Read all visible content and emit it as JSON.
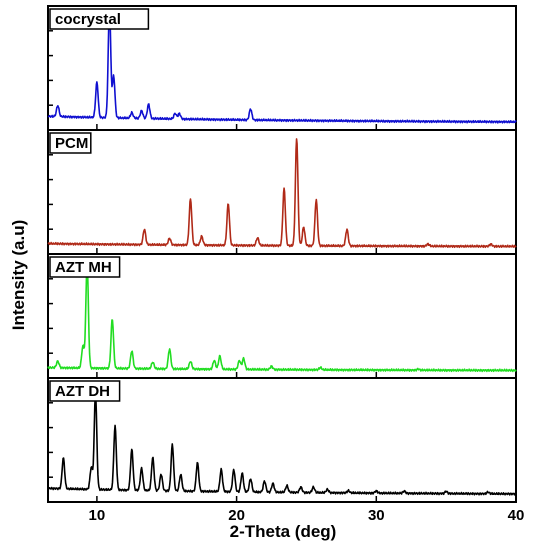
{
  "chart_data": {
    "type": "line",
    "xlabel": "2-Theta (deg)",
    "ylabel": "Intensity (a.u)",
    "xlim": [
      6.5,
      40
    ],
    "x_ticks": [
      10,
      20,
      30,
      40
    ],
    "x_tick_labels": [
      "10",
      "20",
      "30",
      "40"
    ],
    "grid": false,
    "legend": "none",
    "panels": [
      {
        "label": "cocrystal",
        "color": "#1010d0",
        "baseline": 0.06,
        "peaks": [
          [
            7.2,
            0.1
          ],
          [
            10.0,
            0.32
          ],
          [
            10.9,
            1.0
          ],
          [
            11.2,
            0.38
          ],
          [
            12.5,
            0.05
          ],
          [
            13.2,
            0.07
          ],
          [
            13.7,
            0.13
          ],
          [
            15.6,
            0.05
          ],
          [
            15.9,
            0.05
          ],
          [
            21.0,
            0.1
          ]
        ]
      },
      {
        "label": "PCM",
        "color": "#b02a18",
        "baseline": 0.03,
        "peaks": [
          [
            13.4,
            0.14
          ],
          [
            15.2,
            0.06
          ],
          [
            16.7,
            0.42
          ],
          [
            17.5,
            0.08
          ],
          [
            19.4,
            0.38
          ],
          [
            21.5,
            0.07
          ],
          [
            23.4,
            0.52
          ],
          [
            24.3,
            0.98
          ],
          [
            24.8,
            0.17
          ],
          [
            25.7,
            0.42
          ],
          [
            27.9,
            0.15
          ],
          [
            33.7,
            0.02
          ],
          [
            38.2,
            0.02
          ]
        ]
      },
      {
        "label": "AZT MH",
        "color": "#22dd22",
        "baseline": 0.03,
        "peaks": [
          [
            7.2,
            0.06
          ],
          [
            9.0,
            0.2
          ],
          [
            9.3,
            0.95
          ],
          [
            11.1,
            0.45
          ],
          [
            12.5,
            0.16
          ],
          [
            14.0,
            0.06
          ],
          [
            15.2,
            0.18
          ],
          [
            16.7,
            0.07
          ],
          [
            18.4,
            0.08
          ],
          [
            18.8,
            0.12
          ],
          [
            20.2,
            0.08
          ],
          [
            20.5,
            0.1
          ],
          [
            22.5,
            0.03
          ],
          [
            26.0,
            0.02
          ],
          [
            33.0,
            0.01
          ]
        ]
      },
      {
        "label": "AZT DH",
        "color": "#000000",
        "baseline": 0.06,
        "peaks": [
          [
            7.6,
            0.28
          ],
          [
            9.6,
            0.2
          ],
          [
            9.9,
            0.88
          ],
          [
            11.3,
            0.58
          ],
          [
            12.5,
            0.37
          ],
          [
            13.2,
            0.2
          ],
          [
            14.0,
            0.3
          ],
          [
            14.6,
            0.15
          ],
          [
            15.4,
            0.42
          ],
          [
            16.0,
            0.15
          ],
          [
            17.2,
            0.26
          ],
          [
            18.9,
            0.2
          ],
          [
            19.8,
            0.2
          ],
          [
            20.4,
            0.17
          ],
          [
            21.0,
            0.12
          ],
          [
            22.0,
            0.1
          ],
          [
            22.6,
            0.08
          ],
          [
            23.6,
            0.06
          ],
          [
            24.6,
            0.05
          ],
          [
            25.5,
            0.05
          ],
          [
            26.5,
            0.03
          ],
          [
            28.0,
            0.02
          ],
          [
            30.0,
            0.02
          ],
          [
            32.0,
            0.02
          ],
          [
            35.0,
            0.02
          ],
          [
            38.0,
            0.015
          ]
        ]
      }
    ]
  }
}
